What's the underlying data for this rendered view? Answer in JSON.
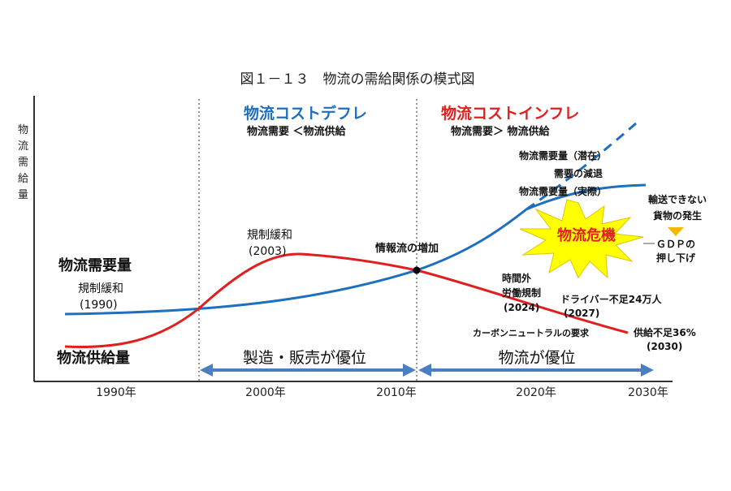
{
  "figure_title": "図１－１３　物流の需給関係の模式図",
  "y_axis_label": [
    "物",
    "流",
    "需",
    "給",
    "量"
  ],
  "x_ticks": [
    "1990年",
    "2000年",
    "2010年",
    "2020年",
    "2030年"
  ],
  "headers": {
    "deflation_title": "物流コストデフレ",
    "deflation_sub": "物流需要 ＜物流供給",
    "inflation_title": "物流コストインフレ",
    "inflation_sub": "物流需要＞ 物流供給"
  },
  "series_labels": {
    "demand": "物流需要量",
    "supply": "物流供給量"
  },
  "annotations": {
    "deregulation_1990_a": "規制緩和",
    "deregulation_1990_b": "(1990)",
    "deregulation_2003_a": "規制緩和",
    "deregulation_2003_b": "(2003)",
    "info_flow": "情報流の増加",
    "demand_potential": "物流需要量（潜在）",
    "demand_decline": "需要の減退",
    "demand_actual": "物流需要量（実際）",
    "crisis": "物流危機",
    "undeliverable_a": "輸送できない",
    "undeliverable_b": "貨物の発生",
    "gdp_a": "ＧＤＰの",
    "gdp_b": "押し下げ",
    "overtime_a": "時間外",
    "overtime_b": "労働規制",
    "overtime_c": "(2024)",
    "driver_a": "ドライバー不足24万人",
    "driver_b": "(2027)",
    "carbon": "カーボンニュートラルの要求",
    "shortage_a": "供給不足36%",
    "shortage_b": "(2030)"
  },
  "eras": {
    "manufacturing": "製造・販売が優位",
    "logistics": "物流が優位"
  },
  "colors": {
    "demand": "#1f6fbf",
    "supply": "#e02020",
    "inflation_title": "#e02020",
    "deflation_title": "#1f6fbf",
    "era_arrow": "#4a7fc1",
    "crisis_fill": "#ffff00",
    "crisis_text": "#e02020",
    "gdp_arrow": "#f5b800"
  }
}
